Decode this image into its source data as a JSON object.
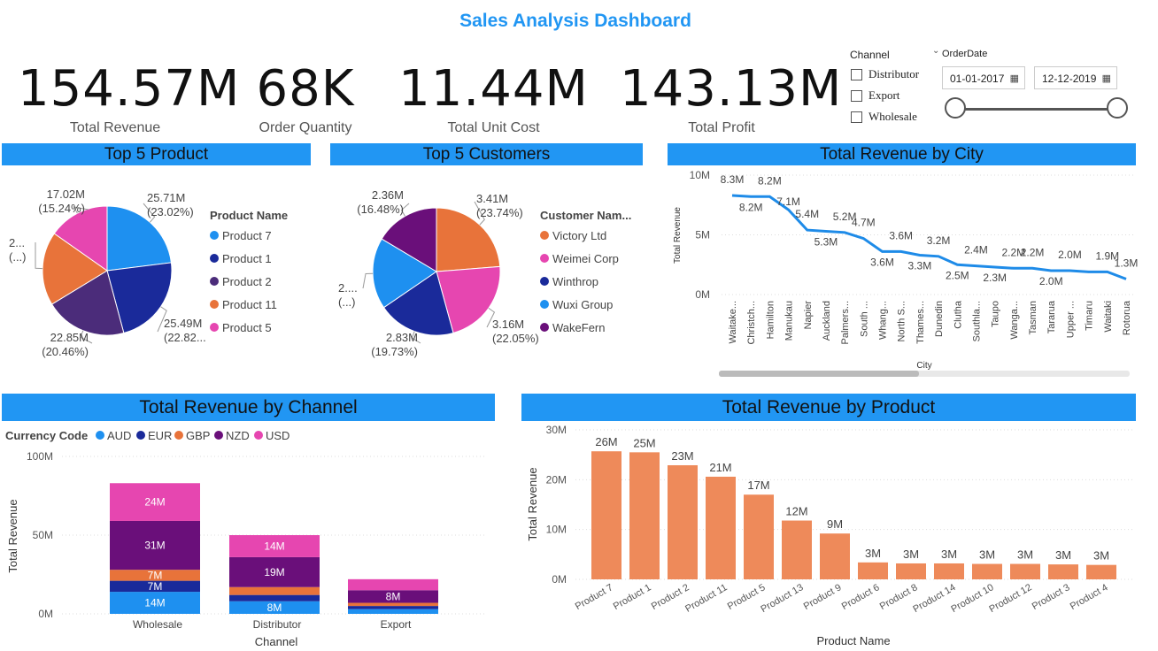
{
  "title": "Sales Analysis Dashboard",
  "kpis": [
    {
      "value": "154.57M",
      "label": "Total Revenue"
    },
    {
      "value": "68K",
      "label": "Order Quantity"
    },
    {
      "value": "11.44M",
      "label": "Total Unit Cost"
    },
    {
      "value": "143.13M",
      "label": "Total Profit"
    }
  ],
  "slicer": {
    "channel_title": "Channel",
    "options": [
      "Distributor",
      "Export",
      "Wholesale"
    ],
    "date_title": "OrderDate",
    "date_from": "01-01-2017",
    "date_to": "12-12-2019"
  },
  "panels": {
    "top5_product": "Top 5 Product",
    "top5_customers": "Top 5 Customers",
    "revenue_by_city": "Total Revenue by City",
    "revenue_by_channel": "Total Revenue by Channel",
    "revenue_by_product": "Total Revenue by Product"
  },
  "colors": {
    "accent": "#2196F3",
    "bar": "#EE8A5A",
    "aud": "#1E90F0",
    "eur": "#1A2A9A",
    "gbp": "#E8733A",
    "nzd": "#6A0F7A",
    "usd": "#E646B0",
    "purple": "#4B2C7A"
  },
  "chart_data": [
    {
      "type": "pie",
      "id": "top5_product",
      "legend_title": "Product Name",
      "slices": [
        {
          "name": "Product 7",
          "value": 25.71,
          "label": "25.71M",
          "pct": "(23.02%)",
          "color": "#1E90F0"
        },
        {
          "name": "Product 1",
          "value": 25.49,
          "label": "25.49M",
          "pct": "(22.82...",
          "color": "#1A2A9A"
        },
        {
          "name": "Product 2",
          "value": 22.85,
          "label": "22.85M",
          "pct": "(20.46%)",
          "color": "#4B2C7A"
        },
        {
          "name": "Product 11",
          "value": 20.62,
          "label": "2...",
          "pct": "(...)",
          "color": "#E8733A"
        },
        {
          "name": "Product 5",
          "value": 17.02,
          "label": "17.02M",
          "pct": "(15.24%)",
          "color": "#E646B0"
        }
      ]
    },
    {
      "type": "pie",
      "id": "top5_customers",
      "legend_title": "Customer Nam...",
      "slices": [
        {
          "name": "Victory Ltd",
          "value": 3.41,
          "label": "3.41M",
          "pct": "(23.74%)",
          "color": "#E8733A"
        },
        {
          "name": "Weimei Corp",
          "value": 3.16,
          "label": "3.16M",
          "pct": "(22.05%)",
          "color": "#E646B0"
        },
        {
          "name": "Winthrop",
          "value": 2.83,
          "label": "2.83M",
          "pct": "(19.73%)",
          "color": "#1A2A9A"
        },
        {
          "name": "Wuxi Group",
          "value": 2.6,
          "label": "2....",
          "pct": "(...)",
          "color": "#1E90F0"
        },
        {
          "name": "WakeFern",
          "value": 2.36,
          "label": "2.36M",
          "pct": "(16.48%)",
          "color": "#6A0F7A"
        }
      ]
    },
    {
      "type": "line",
      "id": "revenue_by_city",
      "xlabel": "City",
      "ylabel": "Total Revenue",
      "yticks": [
        "0M",
        "5M",
        "10M"
      ],
      "ylim": [
        0,
        10
      ],
      "categories": [
        "Waitake...",
        "Christch...",
        "Hamilton",
        "Manukau",
        "Napier",
        "Auckland",
        "Palmers...",
        "South ...",
        "Whang...",
        "North S...",
        "Thames...",
        "Dunedin",
        "Clutha",
        "Southla...",
        "Taupo",
        "Wanga...",
        "Tasman",
        "Tararua",
        "Upper ...",
        "Timaru",
        "Waitaki",
        "Rotorua"
      ],
      "values": [
        8.3,
        8.2,
        8.2,
        7.1,
        5.4,
        5.3,
        5.2,
        4.7,
        3.6,
        3.6,
        3.3,
        3.2,
        2.5,
        2.4,
        2.3,
        2.2,
        2.2,
        2.0,
        2.0,
        1.9,
        1.9,
        1.3
      ],
      "labels": [
        "8.3M",
        "8.2M",
        "8.2M",
        "7.1M",
        "5.4M",
        "5.3M",
        "5.2M",
        "4.7M",
        "3.6M",
        "3.6M",
        "3.3M",
        "3.2M",
        "2.5M",
        "2.4M",
        "2.3M",
        "2.2M",
        "2.2M",
        "2.0M",
        "2.0M",
        "",
        "1.9M",
        "1.3M"
      ]
    },
    {
      "type": "bar",
      "id": "revenue_by_channel",
      "stacked": true,
      "legend_title": "Currency Code",
      "xlabel": "Channel",
      "ylabel": "Total Revenue",
      "yticks": [
        "0M",
        "50M",
        "100M"
      ],
      "ylim": [
        0,
        100
      ],
      "categories": [
        "Wholesale",
        "Distributor",
        "Export"
      ],
      "series": [
        {
          "name": "AUD",
          "values": [
            14,
            8,
            3
          ],
          "labels": [
            "14M",
            "8M",
            ""
          ],
          "color": "#1E90F0"
        },
        {
          "name": "EUR",
          "values": [
            7,
            4,
            2
          ],
          "labels": [
            "7M",
            "",
            ""
          ],
          "color": "#1A2A9A"
        },
        {
          "name": "GBP",
          "values": [
            7,
            5,
            2
          ],
          "labels": [
            "7M",
            "",
            ""
          ],
          "color": "#E8733A"
        },
        {
          "name": "NZD",
          "values": [
            31,
            19,
            8
          ],
          "labels": [
            "31M",
            "19M",
            "8M"
          ],
          "color": "#6A0F7A"
        },
        {
          "name": "USD",
          "values": [
            24,
            14,
            7
          ],
          "labels": [
            "24M",
            "14M",
            ""
          ],
          "color": "#E646B0"
        }
      ]
    },
    {
      "type": "bar",
      "id": "revenue_by_product",
      "xlabel": "Product Name",
      "ylabel": "Total Revenue",
      "yticks": [
        "0M",
        "10M",
        "20M",
        "30M"
      ],
      "ylim": [
        0,
        30
      ],
      "categories": [
        "Product 7",
        "Product 1",
        "Product 2",
        "Product 11",
        "Product 5",
        "Product 13",
        "Product 9",
        "Product 6",
        "Product 8",
        "Product 14",
        "Product 10",
        "Product 12",
        "Product 3",
        "Product 4"
      ],
      "values": [
        25.7,
        25.5,
        22.9,
        20.6,
        17.0,
        11.8,
        9.2,
        3.4,
        3.2,
        3.2,
        3.1,
        3.1,
        3.0,
        2.9
      ],
      "labels": [
        "26M",
        "25M",
        "23M",
        "21M",
        "17M",
        "12M",
        "9M",
        "3M",
        "3M",
        "3M",
        "3M",
        "3M",
        "3M",
        "3M"
      ]
    }
  ]
}
